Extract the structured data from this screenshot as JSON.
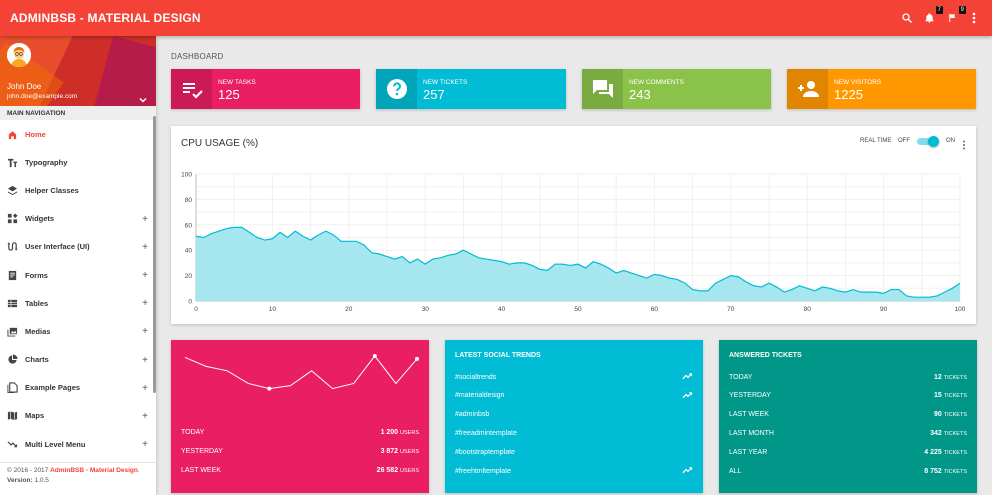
{
  "topbar": {
    "brand": "ADMINBSB - MATERIAL DESIGN",
    "notifications_count": "7",
    "tasks_count": "9",
    "icons": [
      "search-icon",
      "bell-icon",
      "flag-icon",
      "more-vert-icon"
    ]
  },
  "user": {
    "name": "John Doe",
    "email": "john.doe@example.com"
  },
  "sidebar": {
    "header": "MAIN NAVIGATION",
    "items": [
      {
        "label": "Home",
        "icon": "home-icon",
        "active": true,
        "expandable": false
      },
      {
        "label": "Typography",
        "icon": "text-fields-icon",
        "active": false,
        "expandable": false
      },
      {
        "label": "Helper Classes",
        "icon": "layers-icon",
        "active": false,
        "expandable": false
      },
      {
        "label": "Widgets",
        "icon": "widgets-icon",
        "active": false,
        "expandable": true
      },
      {
        "label": "User Interface (UI)",
        "icon": "swap-calls-icon",
        "active": false,
        "expandable": true
      },
      {
        "label": "Forms",
        "icon": "forms-icon",
        "active": false,
        "expandable": true
      },
      {
        "label": "Tables",
        "icon": "tables-icon",
        "active": false,
        "expandable": true
      },
      {
        "label": "Medias",
        "icon": "media-icon",
        "active": false,
        "expandable": true
      },
      {
        "label": "Charts",
        "icon": "pie-chart-icon",
        "active": false,
        "expandable": true
      },
      {
        "label": "Example Pages",
        "icon": "pages-icon",
        "active": false,
        "expandable": true
      },
      {
        "label": "Maps",
        "icon": "map-icon",
        "active": false,
        "expandable": true
      },
      {
        "label": "Multi Level Menu",
        "icon": "trending-down-icon",
        "active": false,
        "expandable": true
      }
    ],
    "plus": "+",
    "footer": {
      "copyright_prefix": "© 2016 - 2017 ",
      "copyright_link": "AdminBSB - Material Design",
      "copyright_suffix": ".",
      "version_label": "Version:",
      "version_value": " 1.0.5"
    }
  },
  "breadcrumb": "DASHBOARD",
  "infoboxes": [
    {
      "title": "NEW TASKS",
      "value": "125",
      "color": "#e91e63",
      "icon": "playlist-check-icon"
    },
    {
      "title": "NEW TICKETS",
      "value": "257",
      "color": "#00bcd4",
      "icon": "help-icon"
    },
    {
      "title": "NEW COMMENTS",
      "value": "243",
      "color": "#8bc34a",
      "icon": "forum-icon"
    },
    {
      "title": "NEW VISITORS",
      "value": "1225",
      "color": "#ff9800",
      "icon": "person-add-icon"
    }
  ],
  "cpu": {
    "title": "CPU USAGE (%)",
    "realtime_label": "REAL TIME",
    "off_label": "OFF",
    "on_label": "ON",
    "realtime_on": true
  },
  "chart_data": [
    {
      "type": "area",
      "title": "CPU USAGE (%)",
      "xlim": [
        0,
        100
      ],
      "ylim": [
        0,
        100
      ],
      "x_ticks": [
        0,
        10,
        20,
        30,
        40,
        50,
        60,
        70,
        80,
        90,
        100
      ],
      "y_ticks": [
        0,
        20,
        40,
        60,
        80,
        100
      ],
      "grid": true,
      "color": "#00bcd4",
      "fill_color": "#a6e6ef",
      "x": [
        0,
        1,
        2,
        3,
        4,
        5,
        6,
        7,
        8,
        9,
        10,
        11,
        12,
        13,
        14,
        15,
        16,
        17,
        18,
        19,
        20,
        21,
        22,
        23,
        24,
        25,
        26,
        27,
        28,
        29,
        30,
        31,
        32,
        33,
        34,
        35,
        36,
        37,
        38,
        39,
        40,
        41,
        42,
        43,
        44,
        45,
        46,
        47,
        48,
        49,
        50,
        51,
        52,
        53,
        54,
        55,
        56,
        57,
        58,
        59,
        60,
        61,
        62,
        63,
        64,
        65,
        66,
        67,
        68,
        69,
        70,
        71,
        72,
        73,
        74,
        75,
        76,
        77,
        78,
        79,
        80,
        81,
        82,
        83,
        84,
        85,
        86,
        87,
        88,
        89,
        90,
        91,
        92,
        93,
        94,
        95,
        96,
        97,
        98,
        99,
        100
      ],
      "values": [
        51,
        50,
        53,
        55,
        57,
        58,
        58,
        54,
        50,
        48,
        49,
        54,
        50,
        55,
        51,
        48,
        52,
        55,
        52,
        47,
        47,
        47,
        44,
        38,
        37,
        35,
        33,
        35,
        30,
        33,
        29,
        33,
        34,
        36,
        37,
        40,
        37,
        34,
        33,
        32,
        31,
        29,
        30,
        30,
        28,
        25,
        24,
        29,
        29,
        28,
        29,
        26,
        31,
        29,
        26,
        22,
        24,
        22,
        20,
        18,
        21,
        20,
        18,
        17,
        14,
        9,
        8,
        8,
        14,
        17,
        20,
        19,
        15,
        12,
        11,
        14,
        11,
        7,
        9,
        12,
        10,
        8,
        11,
        10,
        8,
        7,
        9,
        7,
        7,
        7,
        6,
        9,
        9,
        4,
        3,
        3,
        3,
        4,
        7,
        10,
        14
      ]
    },
    {
      "type": "line",
      "x": [
        0,
        1,
        2,
        3,
        4,
        5,
        6,
        7,
        8,
        9,
        10,
        11
      ],
      "values": [
        60,
        48,
        42,
        25,
        18,
        22,
        42,
        18,
        25,
        62,
        25,
        58
      ],
      "highlighted_points": [
        4,
        9,
        11
      ],
      "color": "#ffffff"
    }
  ],
  "stats": {
    "rows": [
      {
        "label": "TODAY",
        "value": "1 200",
        "unit": "USERS"
      },
      {
        "label": "YESTERDAY",
        "value": "3 872",
        "unit": "USERS"
      },
      {
        "label": "LAST WEEK",
        "value": "26 582",
        "unit": "USERS"
      }
    ]
  },
  "social": {
    "title": "LATEST SOCIAL TRENDS",
    "trends": [
      {
        "tag": "#socialtrends",
        "trending": true
      },
      {
        "tag": "#materialdesign",
        "trending": true
      },
      {
        "tag": "#adminbsb",
        "trending": false
      },
      {
        "tag": "#freeadmintemplate",
        "trending": false
      },
      {
        "tag": "#bootstraptemplate",
        "trending": false
      },
      {
        "tag": "#freehtmltemplate",
        "trending": true
      }
    ]
  },
  "tickets": {
    "title": "ANSWERED TICKETS",
    "rows": [
      {
        "label": "TODAY",
        "value": "12",
        "unit": "TICKETS"
      },
      {
        "label": "YESTERDAY",
        "value": "15",
        "unit": "TICKETS"
      },
      {
        "label": "LAST WEEK",
        "value": "90",
        "unit": "TICKETS"
      },
      {
        "label": "LAST MONTH",
        "value": "342",
        "unit": "TICKETS"
      },
      {
        "label": "LAST YEAR",
        "value": "4 225",
        "unit": "TICKETS"
      },
      {
        "label": "ALL",
        "value": "8 752",
        "unit": "TICKETS"
      }
    ]
  },
  "colors": {
    "primary": "#f44336",
    "pink": "#e91e63",
    "cyan": "#00bcd4",
    "teal": "#009688",
    "green": "#8bc34a",
    "orange": "#ff9800"
  }
}
